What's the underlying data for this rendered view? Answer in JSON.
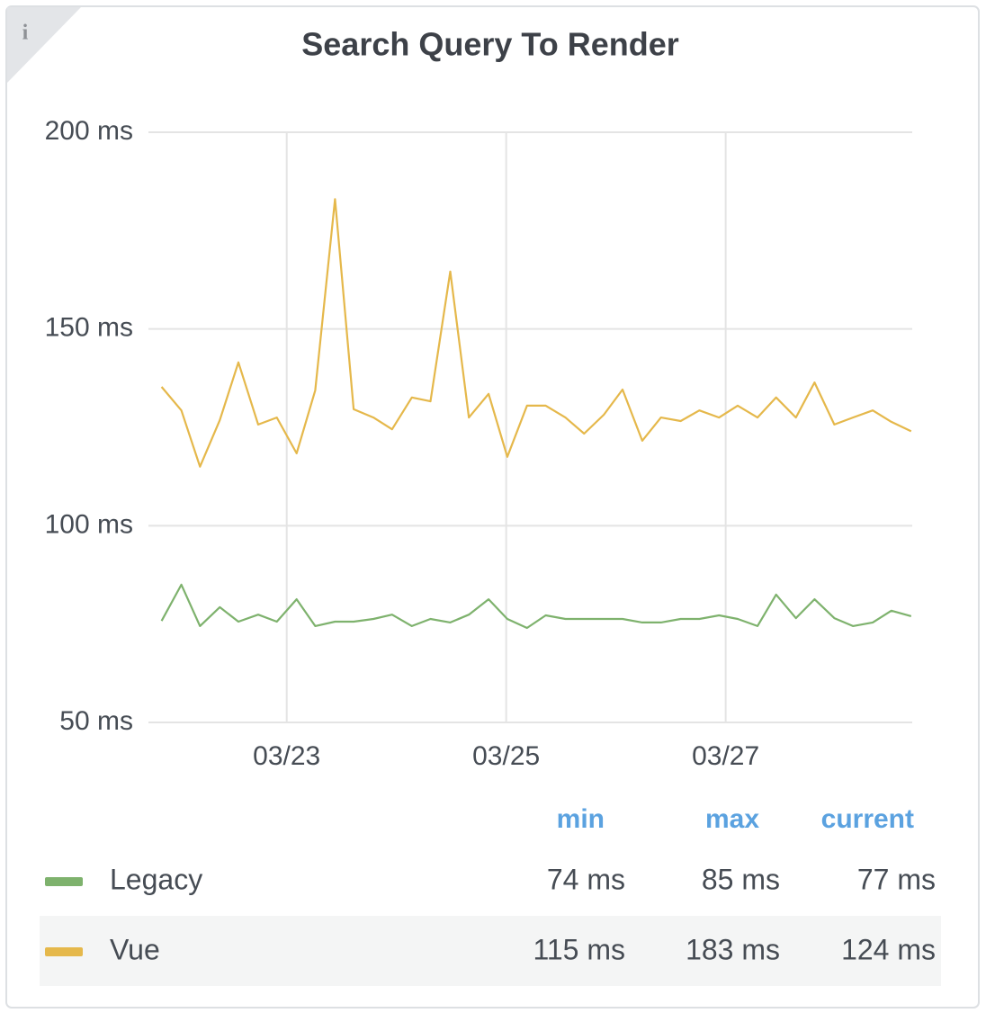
{
  "panel_icon": "i",
  "chart_data": {
    "type": "line",
    "title": "Search Query To Render",
    "x": [
      21.86,
      22.04,
      22.21,
      22.39,
      22.56,
      22.74,
      22.91,
      23.09,
      23.26,
      23.44,
      23.61,
      23.79,
      23.96,
      24.14,
      24.31,
      24.49,
      24.66,
      24.84,
      25.01,
      25.19,
      25.36,
      25.54,
      25.71,
      25.89,
      26.06,
      26.24,
      26.41,
      26.59,
      26.76,
      26.94,
      27.11,
      27.29,
      27.46,
      27.64,
      27.81,
      27.99,
      28.16,
      28.34,
      28.51,
      28.69
    ],
    "xlim": [
      21.74,
      28.7
    ],
    "xticks": [
      {
        "value": 23,
        "label": "03/23"
      },
      {
        "value": 25,
        "label": "03/25"
      },
      {
        "value": 27,
        "label": "03/27"
      }
    ],
    "ylim": [
      50,
      200
    ],
    "yticks": [
      {
        "value": 50,
        "label": "50 ms"
      },
      {
        "value": 100,
        "label": "100 ms"
      },
      {
        "value": 150,
        "label": "150 ms"
      },
      {
        "value": 200,
        "label": "200 ms"
      }
    ],
    "grid": true,
    "legend_columns": [
      "min",
      "max",
      "current"
    ],
    "series": [
      {
        "name": "Legacy",
        "color": "#7eb26d",
        "stats": [
          "74 ms",
          "85 ms",
          "77 ms"
        ],
        "values": [
          75.8,
          85,
          74.5,
          79.3,
          75.6,
          77.4,
          75.6,
          81.3,
          74.5,
          75.6,
          75.6,
          76.3,
          77.4,
          74.5,
          76.3,
          75.4,
          77.4,
          81.3,
          76.3,
          74,
          77.2,
          76.3,
          76.3,
          76.3,
          76.3,
          75.4,
          75.4,
          76.3,
          76.3,
          77.2,
          76.3,
          74.5,
          82.5,
          76.5,
          81.3,
          76.5,
          74.5,
          75.4,
          78.4,
          77
        ]
      },
      {
        "name": "Vue",
        "color": "#e5b84b",
        "stats": [
          "115 ms",
          "183 ms",
          "124 ms"
        ],
        "values": [
          135.3,
          129.3,
          115,
          126.8,
          141.5,
          125.7,
          127.5,
          118.4,
          134.4,
          183,
          129.6,
          127.5,
          124.5,
          132.6,
          131.6,
          164.6,
          127.5,
          133.5,
          117.5,
          130.5,
          130.5,
          127.5,
          123.4,
          128.2,
          134.6,
          121.6,
          127.5,
          126.6,
          129.3,
          127.5,
          130.5,
          127.5,
          132.6,
          127.5,
          136.4,
          125.7,
          127.5,
          129.3,
          126.4,
          124
        ]
      }
    ]
  }
}
